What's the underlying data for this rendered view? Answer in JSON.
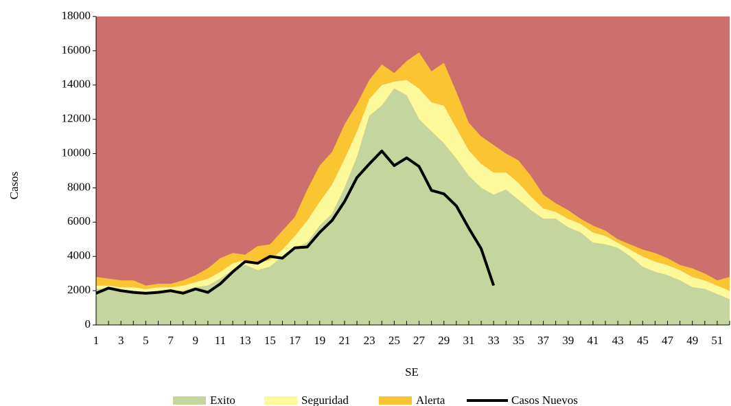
{
  "chart_data": {
    "type": "area",
    "stacked": true,
    "x_label": "SE",
    "y_label": "Casos",
    "background_color": "#cd6f6d",
    "categories": [
      1,
      null,
      3,
      null,
      5,
      null,
      7,
      null,
      9,
      null,
      11,
      null,
      13,
      null,
      15,
      null,
      17,
      null,
      19,
      null,
      21,
      null,
      23,
      null,
      25,
      null,
      27,
      null,
      29,
      null,
      31,
      null,
      33,
      null,
      35,
      null,
      37,
      null,
      39,
      null,
      41,
      null,
      43,
      null,
      45,
      null,
      47,
      null,
      49,
      null,
      51,
      null
    ],
    "ylim": [
      0,
      18000
    ],
    "yticks": [
      0,
      2000,
      4000,
      6000,
      8000,
      10000,
      12000,
      14000,
      16000,
      18000
    ],
    "legend": "bottom",
    "series": [
      {
        "name": "Exito",
        "color": "#c4d69e",
        "values": [
          2100,
          2100,
          2000,
          2000,
          1900,
          2000,
          2000,
          2000,
          2200,
          2300,
          2700,
          3200,
          3500,
          3200,
          3400,
          4000,
          4500,
          4800,
          5800,
          6500,
          8000,
          9800,
          12200,
          12800,
          13800,
          13400,
          12000,
          11300,
          10600,
          9700,
          8700,
          8000,
          7600,
          7900,
          7300,
          6700,
          6200,
          6200,
          5700,
          5400,
          4800,
          4700,
          4500,
          4000,
          3400,
          3100,
          2900,
          2600,
          2200,
          2100,
          1800,
          1500
        ]
      },
      {
        "name": "Seguridad",
        "color": "#fcf99b",
        "values": [
          200,
          200,
          200,
          200,
          200,
          200,
          200,
          300,
          300,
          400,
          400,
          400,
          300,
          400,
          400,
          400,
          700,
          1300,
          1400,
          1700,
          1700,
          1500,
          1000,
          1200,
          400,
          900,
          1800,
          1700,
          2200,
          1800,
          1500,
          1400,
          1300,
          1000,
          1000,
          800,
          600,
          400,
          500,
          500,
          600,
          500,
          300,
          400,
          600,
          600,
          600,
          600,
          600,
          500,
          500,
          500
        ]
      },
      {
        "name": "Alerta",
        "color": "#fbc432",
        "values": [
          500,
          400,
          400,
          400,
          200,
          200,
          200,
          300,
          400,
          600,
          800,
          600,
          300,
          1000,
          900,
          1100,
          1100,
          1800,
          2100,
          1900,
          2000,
          1600,
          1100,
          1200,
          500,
          1100,
          2100,
          1800,
          2500,
          2100,
          1600,
          1600,
          1600,
          1100,
          1300,
          1200,
          800,
          500,
          500,
          300,
          400,
          300,
          200,
          300,
          400,
          500,
          400,
          300,
          500,
          400,
          300,
          800
        ]
      },
      {
        "name": "Casos Nuevos",
        "type": "line",
        "color": "#000000",
        "values": [
          1850,
          2150,
          2000,
          1900,
          1850,
          1900,
          2000,
          1850,
          2100,
          1900,
          2400,
          3100,
          3700,
          3600,
          4000,
          3900,
          4500,
          4550,
          5400,
          6100,
          7200,
          8600,
          9400,
          10150,
          9300,
          9750,
          9250,
          7850,
          7650,
          6950,
          5650,
          4450,
          2300,
          null,
          null,
          null,
          null,
          null,
          null,
          null,
          null,
          null,
          null,
          null,
          null,
          null,
          null,
          null,
          null,
          null,
          null,
          null
        ]
      }
    ]
  }
}
